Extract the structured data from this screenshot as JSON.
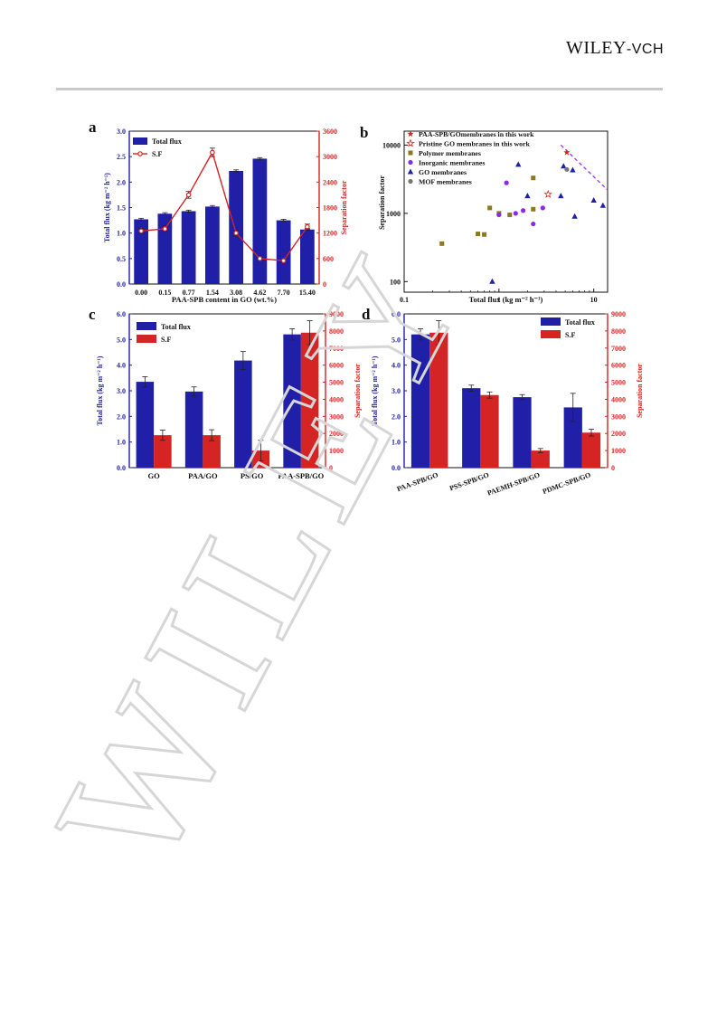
{
  "page": {
    "publisher_logo": "WILEY-VCH",
    "watermark": "WILEY"
  },
  "colors": {
    "navy": "#1f1fa8",
    "red": "#d42424",
    "purple_line": "#9b30ff"
  },
  "chart_data": [
    {
      "panel": "a",
      "type": "bar",
      "xlabel": "PAA-SPB content in GO (wt.%)",
      "ylabel": "Total flux (kg m⁻² h⁻¹)",
      "ylabel_right": "Separation factor",
      "categories": [
        "0.00",
        "0.15",
        "0.77",
        "1.54",
        "3.08",
        "4.62",
        "7.70",
        "15.40"
      ],
      "ylim": [
        0,
        3.0
      ],
      "yticks": [
        "0.0",
        "0.5",
        "1.0",
        "1.5",
        "2.0",
        "2.5",
        "3.0"
      ],
      "ylim_right": [
        0,
        3600
      ],
      "yticks_right": [
        "0",
        "600",
        "1200",
        "1800",
        "2400",
        "3000",
        "3600"
      ],
      "legend_position": "top-left",
      "series": [
        {
          "name": "Total flux",
          "type": "bar",
          "axis": "left",
          "color": "#1f1fa8",
          "values": [
            1.27,
            1.38,
            1.43,
            1.52,
            2.22,
            2.46,
            1.25,
            1.07
          ],
          "errors": [
            0.02,
            0.02,
            0.02,
            0.02,
            0.02,
            0.02,
            0.02,
            0.02
          ]
        },
        {
          "name": "S.F",
          "type": "line",
          "axis": "right",
          "color": "#d42424",
          "values": [
            1250,
            1300,
            2100,
            3100,
            1200,
            600,
            550,
            1350
          ],
          "errors": [
            60,
            60,
            80,
            100,
            60,
            30,
            30,
            60
          ]
        }
      ]
    },
    {
      "panel": "b",
      "type": "scatter",
      "xlabel": "Total flux (kg m⁻² h⁻¹)",
      "ylabel": "Separation factor",
      "xscale": "log",
      "yscale": "log",
      "xlim": [
        0.1,
        14
      ],
      "ylim": [
        70,
        16000
      ],
      "xticks": [
        {
          "v": 0.1,
          "label": "0.1"
        },
        {
          "v": 1,
          "label": "1"
        },
        {
          "v": 10,
          "label": "10"
        }
      ],
      "yticks": [
        {
          "v": 100,
          "label": "100"
        },
        {
          "v": 1000,
          "label": "1000"
        },
        {
          "v": 10000,
          "label": "10000"
        }
      ],
      "legend_position": "top-left",
      "series": [
        {
          "name": "PAA-SPB/GOmembranes in this work",
          "marker": "star-filled",
          "color": "#d42424",
          "points": [
            [
              5.2,
              7800
            ]
          ]
        },
        {
          "name": "Pristine GO  membranes in this work",
          "marker": "star-open",
          "color": "#d42424",
          "points": [
            [
              3.3,
              1900
            ]
          ]
        },
        {
          "name": "Polymer membranes",
          "marker": "square",
          "color": "#8a7a1a",
          "points": [
            [
              0.25,
              360
            ],
            [
              0.6,
              500
            ],
            [
              0.7,
              490
            ],
            [
              0.8,
              1200
            ],
            [
              1.0,
              1000
            ],
            [
              1.3,
              950
            ],
            [
              2.3,
              3300
            ],
            [
              2.3,
              1150
            ]
          ]
        },
        {
          "name": "Inorganic membranes",
          "marker": "circle",
          "color": "#8a2be2",
          "points": [
            [
              1.0,
              950
            ],
            [
              1.2,
              2800
            ],
            [
              1.5,
              1000
            ],
            [
              1.8,
              1100
            ],
            [
              2.3,
              700
            ],
            [
              2.9,
              1200
            ]
          ]
        },
        {
          "name": "GO membranes",
          "marker": "triangle",
          "color": "#1f1fa8",
          "points": [
            [
              0.85,
              100
            ],
            [
              1.6,
              5200
            ],
            [
              2.0,
              1800
            ],
            [
              4.5,
              1800
            ],
            [
              4.8,
              4900
            ],
            [
              6.0,
              4300
            ],
            [
              6.3,
              900
            ],
            [
              10.0,
              1550
            ],
            [
              12.5,
              1300
            ]
          ]
        },
        {
          "name": "MOF membranes",
          "marker": "circle",
          "color": "#777777",
          "points": [
            [
              5.2,
              4400
            ]
          ]
        }
      ],
      "trend_line": {
        "style": "dashed",
        "color": "#9b30ff",
        "points": [
          [
            4.5,
            10000
          ],
          [
            14,
            2200
          ]
        ]
      }
    },
    {
      "panel": "c",
      "type": "bar",
      "xlabel": "",
      "ylabel": "Total flux (kg m⁻² h⁻¹)",
      "ylabel_right": "Separation factor",
      "categories": [
        "GO",
        "PAA/GO",
        "PS/GO",
        "PAA-SPB/GO"
      ],
      "ylim": [
        0,
        6.0
      ],
      "yticks": [
        "0.0",
        "1.0",
        "2.0",
        "3.0",
        "4.0",
        "5.0",
        "6.0"
      ],
      "ylim_right": [
        0,
        9000
      ],
      "yticks_right": [
        "0",
        "1000",
        "2000",
        "3000",
        "4000",
        "5000",
        "6000",
        "7000",
        "8000",
        "9000"
      ],
      "legend_position": "top-left",
      "series": [
        {
          "name": "Total flux",
          "axis": "left",
          "color": "#1f1fa8",
          "values": [
            3.35,
            2.97,
            4.18,
            5.2
          ],
          "errors": [
            0.2,
            0.18,
            0.35,
            0.22
          ]
        },
        {
          "name": "S.F",
          "axis": "right",
          "color": "#d42424",
          "values": [
            1900,
            1900,
            1000,
            7900
          ],
          "errors": [
            300,
            320,
            600,
            700
          ]
        }
      ]
    },
    {
      "panel": "d",
      "type": "bar",
      "xlabel": "",
      "ylabel": "Total flux (kg m⁻² h⁻¹)",
      "ylabel_right": "Separation factor",
      "categories": [
        "PAA-SPB/GO",
        "PSS-SPB/GO",
        "PAEMH-SPB/GO",
        "PDMC-SPB/GO"
      ],
      "ylim": [
        0,
        6.0
      ],
      "yticks": [
        "0.0",
        "1.0",
        "2.0",
        "3.0",
        "4.0",
        "5.0",
        "6.0"
      ],
      "ylim_right": [
        0,
        9000
      ],
      "yticks_right": [
        "0",
        "1000",
        "2000",
        "3000",
        "4000",
        "5000",
        "6000",
        "7000",
        "8000",
        "9000"
      ],
      "legend_position": "top-right",
      "series": [
        {
          "name": "Total flux",
          "axis": "left",
          "color": "#1f1fa8",
          "values": [
            5.2,
            3.1,
            2.75,
            2.35
          ],
          "errors": [
            0.22,
            0.12,
            0.1,
            0.55
          ]
        },
        {
          "name": "S.F",
          "axis": "right",
          "color": "#d42424",
          "values": [
            7900,
            4250,
            1000,
            2050
          ],
          "errors": [
            700,
            180,
            120,
            200
          ]
        }
      ]
    }
  ]
}
